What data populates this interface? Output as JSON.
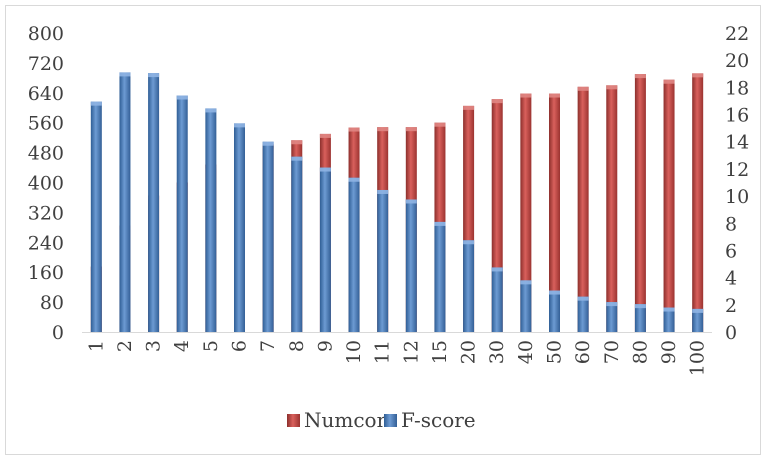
{
  "chart_data": {
    "type": "bar",
    "title": "",
    "xlabel": "",
    "categories": [
      "1",
      "2",
      "3",
      "4",
      "5",
      "6",
      "7",
      "8",
      "9",
      "10",
      "11",
      "12",
      "15",
      "20",
      "30",
      "40",
      "50",
      "60",
      "70",
      "80",
      "90",
      "100"
    ],
    "series": [
      {
        "name": "Numcon",
        "axis": "left",
        "color": "#c0504d",
        "values": [
          175,
          285,
          365,
          400,
          448,
          478,
          502,
          513,
          530,
          547,
          548,
          548,
          560,
          605,
          623,
          638,
          638,
          656,
          660,
          690,
          675,
          692
        ]
      },
      {
        "name": "F-score",
        "axis": "right",
        "color": "#4f81bd",
        "values": [
          16.95,
          19.1,
          19.05,
          17.4,
          16.45,
          15.35,
          14.0,
          12.9,
          12.1,
          11.35,
          10.45,
          9.75,
          8.1,
          6.75,
          4.75,
          3.8,
          3.05,
          2.6,
          2.2,
          2.05,
          1.8,
          1.7
        ]
      }
    ],
    "y_left": {
      "min": 0,
      "max": 800,
      "ticks": [
        "0",
        "80",
        "160",
        "240",
        "320",
        "400",
        "480",
        "560",
        "640",
        "720",
        "800"
      ]
    },
    "y_right": {
      "min": 0,
      "max": 22,
      "ticks": [
        "0",
        "2",
        "4",
        "6",
        "8",
        "10",
        "12",
        "14",
        "16",
        "18",
        "20",
        "22"
      ]
    },
    "grid": false,
    "legend_position": "bottom"
  }
}
